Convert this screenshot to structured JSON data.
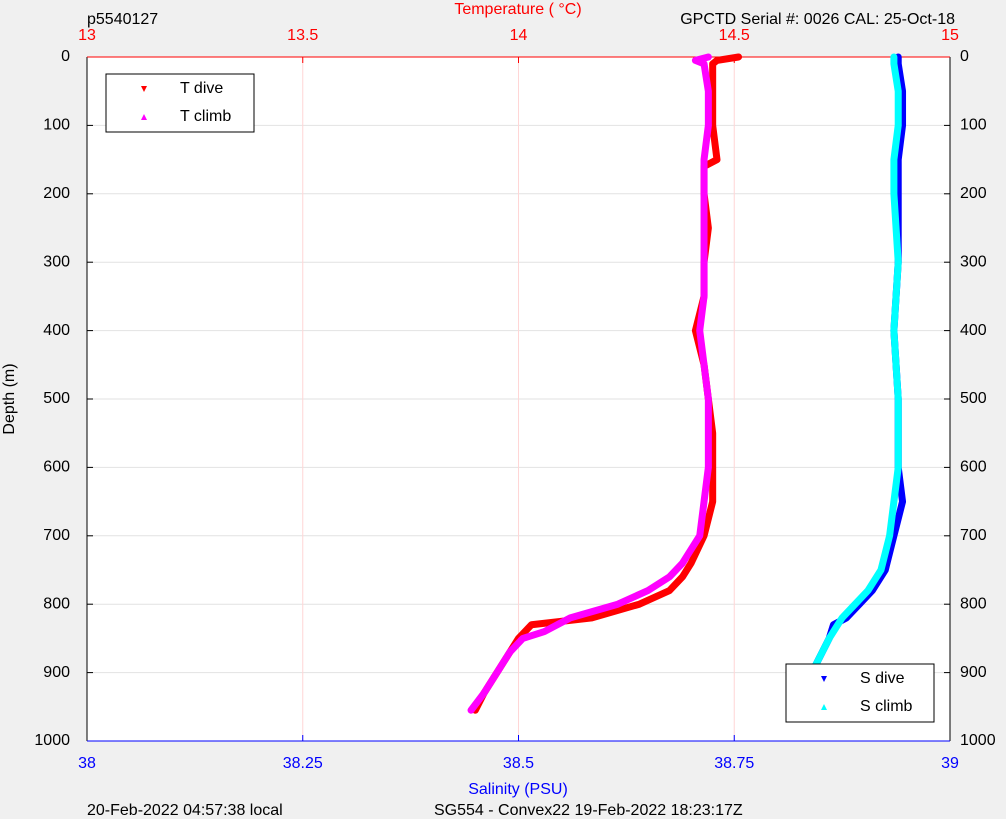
{
  "chart_data": {
    "type": "profile",
    "title_left": "p5540127",
    "title_right": "GPCTD Serial #: 0026 CAL: 25-Oct-18",
    "x2label": "Temperature (   °C)",
    "xlabel": "Salinity (PSU)",
    "ylabel": "Depth (m)",
    "footer_left": "20-Feb-2022 04:57:38 local",
    "footer_right": "SG554 - Convex22 19-Feb-2022 18:23:17Z",
    "xlim": [
      38,
      39
    ],
    "xticks": [
      38,
      38.25,
      38.5,
      38.75,
      39
    ],
    "x2lim": [
      13,
      15
    ],
    "x2ticks": [
      13,
      13.5,
      14,
      14.5,
      15
    ],
    "ylim": [
      0,
      1000
    ],
    "yticks": [
      0,
      100,
      200,
      300,
      400,
      500,
      600,
      700,
      800,
      900,
      1000
    ],
    "y_reversed": true,
    "ygrid": true,
    "x2grid": true,
    "series": [
      {
        "name": "T dive",
        "color": "#ff0000",
        "marker": "down",
        "xaxis": "x2",
        "legend_loc": "northwest",
        "y": [
          0,
          5,
          10,
          50,
          100,
          150,
          160,
          200,
          250,
          300,
          350,
          400,
          450,
          500,
          550,
          600,
          650,
          700,
          740,
          760,
          780,
          800,
          820,
          830,
          850,
          870,
          900,
          930,
          955
        ],
        "x": [
          14.51,
          14.46,
          14.45,
          14.45,
          14.45,
          14.46,
          14.43,
          14.43,
          14.44,
          14.43,
          14.43,
          14.41,
          14.43,
          14.44,
          14.45,
          14.45,
          14.45,
          14.43,
          14.4,
          14.38,
          14.35,
          14.28,
          14.17,
          14.03,
          14.0,
          13.98,
          13.95,
          13.92,
          13.9
        ]
      },
      {
        "name": "T climb",
        "color": "#ff00ff",
        "marker": "up",
        "xaxis": "x2",
        "legend_loc": "northwest",
        "y": [
          0,
          5,
          10,
          50,
          100,
          150,
          200,
          250,
          300,
          350,
          400,
          450,
          500,
          550,
          600,
          650,
          700,
          740,
          760,
          780,
          800,
          820,
          840,
          850,
          870,
          900,
          930,
          955
        ],
        "x": [
          14.44,
          14.41,
          14.43,
          14.44,
          14.44,
          14.43,
          14.43,
          14.43,
          14.43,
          14.43,
          14.42,
          14.43,
          14.44,
          14.44,
          14.44,
          14.43,
          14.42,
          14.38,
          14.35,
          14.3,
          14.23,
          14.12,
          14.06,
          14.01,
          13.98,
          13.95,
          13.92,
          13.89
        ]
      },
      {
        "name": "S dive",
        "color": "#0000ff",
        "marker": "down",
        "xaxis": "x",
        "legend_loc": "southeast",
        "y": [
          0,
          10,
          50,
          100,
          150,
          200,
          300,
          400,
          500,
          600,
          650,
          700,
          750,
          780,
          800,
          820,
          830,
          850,
          900,
          955
        ],
        "x": [
          38.94,
          38.94,
          38.945,
          38.945,
          38.94,
          38.94,
          38.94,
          38.935,
          38.94,
          38.94,
          38.945,
          38.935,
          38.925,
          38.91,
          38.895,
          38.88,
          38.865,
          38.86,
          38.84,
          38.825
        ]
      },
      {
        "name": "S climb",
        "color": "#00ffff",
        "marker": "up",
        "xaxis": "x",
        "legend_loc": "southeast",
        "y": [
          0,
          10,
          50,
          100,
          150,
          200,
          300,
          400,
          500,
          600,
          650,
          700,
          750,
          780,
          800,
          820,
          850,
          900,
          955
        ],
        "x": [
          38.935,
          38.935,
          38.94,
          38.94,
          38.935,
          38.935,
          38.94,
          38.935,
          38.94,
          38.94,
          38.935,
          38.93,
          38.92,
          38.905,
          38.89,
          38.875,
          38.86,
          38.84,
          38.825
        ]
      }
    ]
  }
}
